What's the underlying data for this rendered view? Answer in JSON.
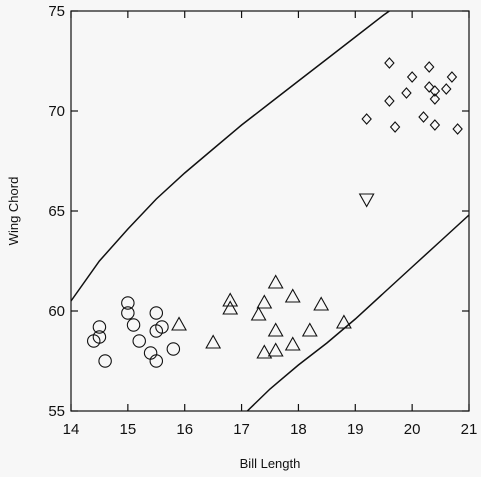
{
  "chart_data": {
    "type": "scatter",
    "title": "",
    "xlabel": "Bill Length",
    "ylabel": "Wing Chord",
    "xlim": [
      14,
      21
    ],
    "ylim": [
      55,
      75
    ],
    "xticks": [
      14,
      15,
      16,
      17,
      18,
      19,
      20,
      21
    ],
    "yticks": [
      55,
      60,
      65,
      70,
      75
    ],
    "grid": false,
    "legend": "none",
    "series": [
      {
        "marker": "circle",
        "points": [
          [
            14.4,
            58.5
          ],
          [
            14.5,
            58.7
          ],
          [
            14.5,
            59.2
          ],
          [
            14.6,
            57.5
          ],
          [
            15.0,
            60.4
          ],
          [
            15.0,
            59.9
          ],
          [
            15.1,
            59.3
          ],
          [
            15.2,
            58.5
          ],
          [
            15.4,
            57.9
          ],
          [
            15.5,
            57.5
          ],
          [
            15.5,
            59.0
          ],
          [
            15.5,
            59.9
          ],
          [
            15.6,
            59.2
          ],
          [
            15.8,
            58.1
          ]
        ]
      },
      {
        "marker": "triangle-up",
        "points": [
          [
            15.9,
            59.3
          ],
          [
            16.5,
            58.4
          ],
          [
            16.8,
            60.5
          ],
          [
            16.8,
            60.1
          ],
          [
            17.3,
            59.8
          ],
          [
            17.4,
            57.9
          ],
          [
            17.4,
            60.4
          ],
          [
            17.6,
            61.4
          ],
          [
            17.6,
            58.0
          ],
          [
            17.6,
            59.0
          ],
          [
            17.9,
            60.7
          ],
          [
            17.9,
            58.3
          ],
          [
            18.2,
            59.0
          ],
          [
            18.4,
            60.3
          ],
          [
            18.8,
            59.4
          ]
        ]
      },
      {
        "marker": "triangle-down",
        "points": [
          [
            19.2,
            65.6
          ]
        ]
      },
      {
        "marker": "diamond",
        "points": [
          [
            19.2,
            69.6
          ],
          [
            19.6,
            72.4
          ],
          [
            19.6,
            70.5
          ],
          [
            19.7,
            69.2
          ],
          [
            19.9,
            70.9
          ],
          [
            20.0,
            71.7
          ],
          [
            20.2,
            69.7
          ],
          [
            20.3,
            72.2
          ],
          [
            20.3,
            71.2
          ],
          [
            20.4,
            70.6
          ],
          [
            20.4,
            69.3
          ],
          [
            20.4,
            71.0
          ],
          [
            20.6,
            71.1
          ],
          [
            20.7,
            71.7
          ],
          [
            20.8,
            69.1
          ]
        ]
      }
    ],
    "curves": [
      {
        "name": "upper-boundary",
        "points": [
          [
            14.0,
            60.5
          ],
          [
            14.5,
            62.5
          ],
          [
            15.0,
            64.1
          ],
          [
            15.5,
            65.6
          ],
          [
            16.0,
            66.9
          ],
          [
            16.5,
            68.1
          ],
          [
            17.0,
            69.3
          ],
          [
            17.5,
            70.4
          ],
          [
            18.0,
            71.5
          ],
          [
            18.5,
            72.6
          ],
          [
            19.0,
            73.7
          ],
          [
            19.5,
            74.8
          ],
          [
            19.6,
            75.0
          ]
        ]
      },
      {
        "name": "lower-boundary",
        "points": [
          [
            17.1,
            55.0
          ],
          [
            17.5,
            56.1
          ],
          [
            18.0,
            57.3
          ],
          [
            18.5,
            58.4
          ],
          [
            19.0,
            59.6
          ],
          [
            19.5,
            60.9
          ],
          [
            20.0,
            62.2
          ],
          [
            20.5,
            63.5
          ],
          [
            21.0,
            64.8
          ]
        ]
      }
    ]
  }
}
